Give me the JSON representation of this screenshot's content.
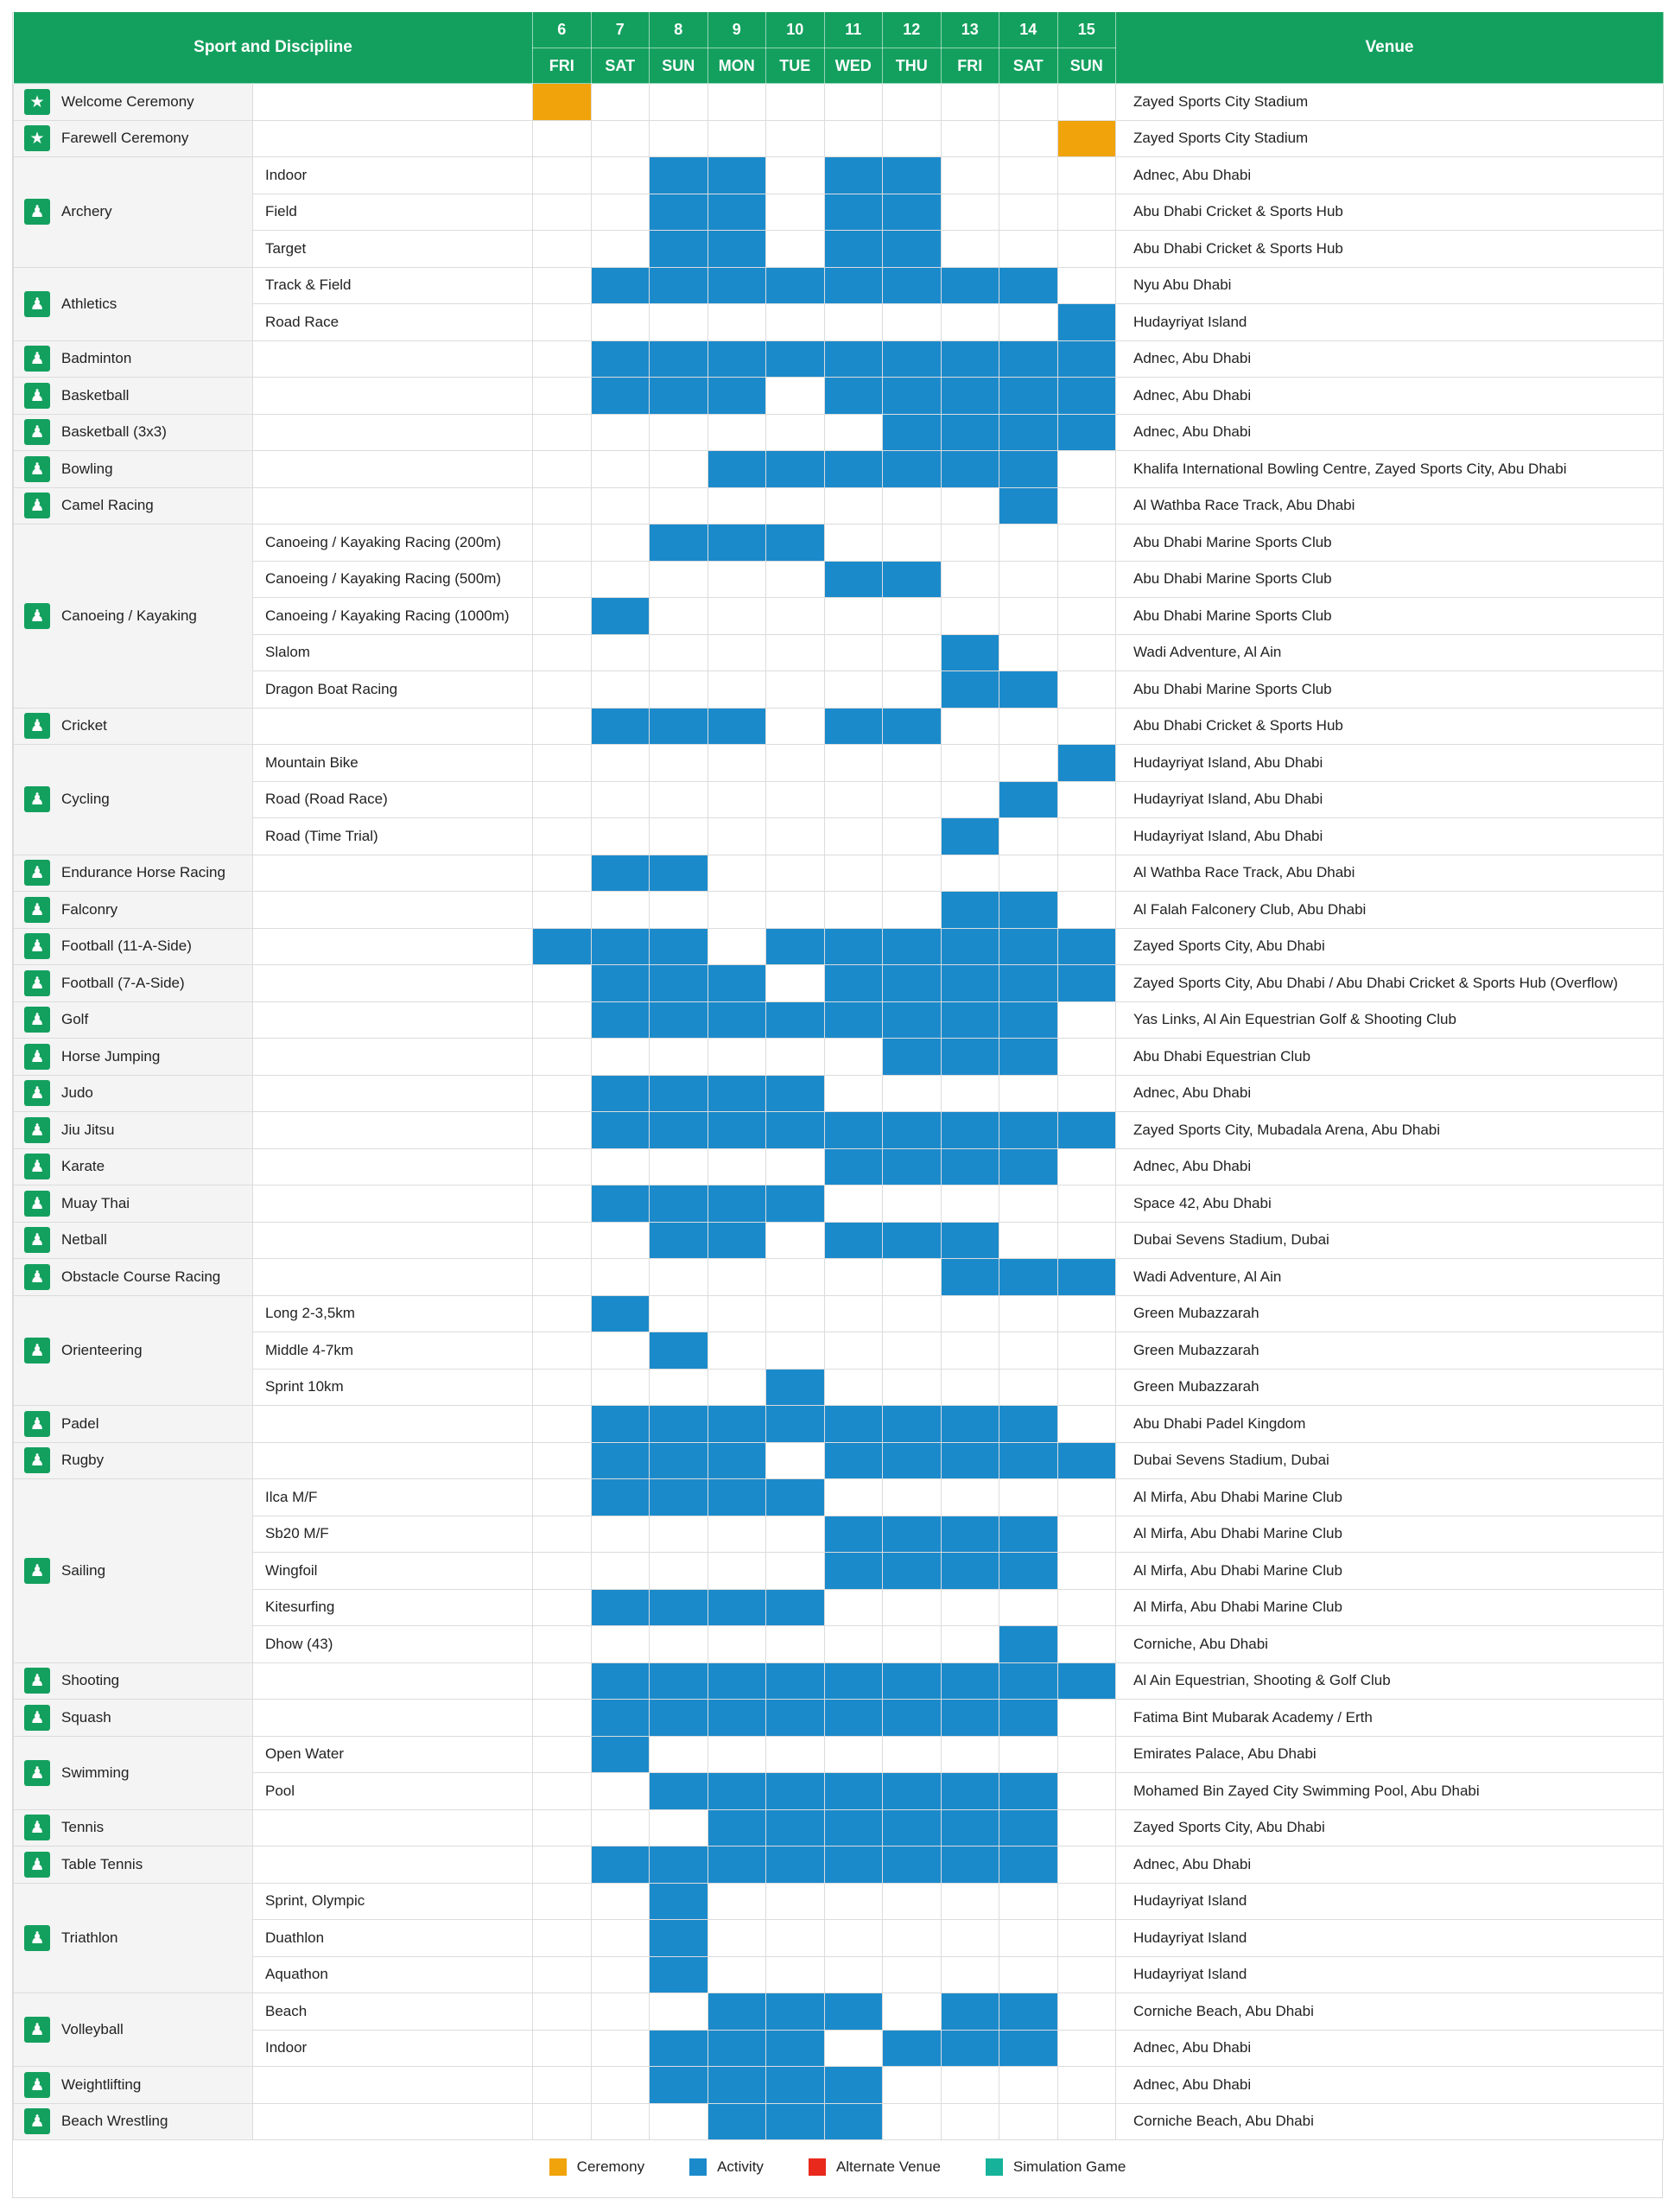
{
  "header": {
    "sport_label": "Sport and Discipline",
    "venue_label": "Venue",
    "dates": [
      "6",
      "7",
      "8",
      "9",
      "10",
      "11",
      "12",
      "13",
      "14",
      "15"
    ],
    "weekdays": [
      "FRI",
      "SAT",
      "SUN",
      "MON",
      "TUE",
      "WED",
      "THU",
      "FRI",
      "SAT",
      "SUN"
    ]
  },
  "colors": {
    "header_green": "#13a05e",
    "activity": "#1b8acb",
    "ceremony": "#f0a30a",
    "alternate_venue": "#e8291c",
    "simulation_game": "#16b39a"
  },
  "legend": [
    {
      "label": "Ceremony",
      "color": "#f0a30a"
    },
    {
      "label": "Activity",
      "color": "#1b8acb"
    },
    {
      "label": "Alternate Venue",
      "color": "#e8291c"
    },
    {
      "label": "Simulation Game",
      "color": "#16b39a"
    }
  ],
  "sports": [
    {
      "name": "Welcome Ceremony",
      "icon": "star-icon",
      "rows": [
        {
          "discipline": "",
          "days": "C---------",
          "venue": "Zayed Sports City Stadium"
        }
      ]
    },
    {
      "name": "Farewell Ceremony",
      "icon": "star-icon",
      "rows": [
        {
          "discipline": "",
          "days": "---------C",
          "venue": "Zayed Sports City Stadium"
        }
      ]
    },
    {
      "name": "Archery",
      "icon": "archery-icon",
      "rows": [
        {
          "discipline": "Indoor",
          "days": "--AA-AA---",
          "venue": "Adnec, Abu Dhabi"
        },
        {
          "discipline": "Field",
          "days": "--AA-AA---",
          "venue": "Abu Dhabi Cricket & Sports Hub"
        },
        {
          "discipline": "Target",
          "days": "--AA-AA---",
          "venue": "Abu Dhabi Cricket & Sports Hub"
        }
      ]
    },
    {
      "name": "Athletics",
      "icon": "running-icon",
      "rows": [
        {
          "discipline": "Track & Field",
          "days": "-AAAAAAAA-",
          "venue": "Nyu Abu Dhabi"
        },
        {
          "discipline": "Road Race",
          "days": "---------A",
          "venue": "Hudayriyat Island"
        }
      ]
    },
    {
      "name": "Badminton",
      "icon": "badminton-icon",
      "rows": [
        {
          "discipline": "",
          "days": "-AAAAAAAAA",
          "venue": "Adnec, Abu Dhabi"
        }
      ]
    },
    {
      "name": "Basketball",
      "icon": "basketball-icon",
      "rows": [
        {
          "discipline": "",
          "days": "-AAA-AAAAA",
          "venue": "Adnec, Abu Dhabi"
        }
      ]
    },
    {
      "name": "Basketball (3x3)",
      "icon": "basketball-icon",
      "rows": [
        {
          "discipline": "",
          "days": "------AAAA",
          "venue": "Adnec, Abu Dhabi"
        }
      ]
    },
    {
      "name": "Bowling",
      "icon": "bowling-icon",
      "rows": [
        {
          "discipline": "",
          "days": "---AAAAAA-",
          "venue": "Khalifa International Bowling Centre, Zayed Sports City, Abu Dhabi"
        }
      ]
    },
    {
      "name": "Camel Racing",
      "icon": "camel-icon",
      "rows": [
        {
          "discipline": "",
          "days": "--------A-",
          "venue": "Al Wathba Race Track, Abu Dhabi"
        }
      ]
    },
    {
      "name": "Canoeing / Kayaking",
      "icon": "canoe-icon",
      "rows": [
        {
          "discipline": "Canoeing / Kayaking Racing (200m)",
          "days": "--AAA-----",
          "venue": "Abu Dhabi Marine Sports Club"
        },
        {
          "discipline": "Canoeing / Kayaking  Racing (500m)",
          "days": "-----AA---",
          "venue": "Abu Dhabi Marine Sports Club"
        },
        {
          "discipline": "Canoeing / Kayaking  Racing (1000m)",
          "days": "-A--------",
          "venue": "Abu Dhabi Marine Sports Club"
        },
        {
          "discipline": "Slalom",
          "days": "-------A--",
          "venue": "Wadi Adventure, Al Ain"
        },
        {
          "discipline": "Dragon Boat Racing",
          "days": "-------AA-",
          "venue": "Abu Dhabi Marine Sports Club"
        }
      ]
    },
    {
      "name": "Cricket",
      "icon": "cricket-icon",
      "rows": [
        {
          "discipline": "",
          "days": "-AAA-AA---",
          "venue": "Abu Dhabi Cricket & Sports Hub"
        }
      ]
    },
    {
      "name": "Cycling",
      "icon": "bicycle-icon",
      "rows": [
        {
          "discipline": "Mountain Bike",
          "days": "---------A",
          "venue": "Hudayriyat Island, Abu Dhabi"
        },
        {
          "discipline": "Road (Road Race)",
          "days": "--------A-",
          "venue": "Hudayriyat Island, Abu Dhabi"
        },
        {
          "discipline": "Road (Time Trial)",
          "days": "-------A--",
          "venue": "Hudayriyat Island, Abu Dhabi"
        }
      ]
    },
    {
      "name": "Endurance Horse Racing",
      "icon": "horse-icon",
      "rows": [
        {
          "discipline": "",
          "days": "-AA-------",
          "venue": "Al Wathba Race Track, Abu Dhabi"
        }
      ]
    },
    {
      "name": "Falconry",
      "icon": "falcon-icon",
      "rows": [
        {
          "discipline": "",
          "days": "-------AA-",
          "venue": "Al Falah Falconery Club, Abu Dhabi"
        }
      ]
    },
    {
      "name": "Football (11-A-Side)",
      "icon": "football-icon",
      "rows": [
        {
          "discipline": "",
          "days": "AAA-AAAAAA",
          "venue": "Zayed Sports City, Abu Dhabi"
        }
      ]
    },
    {
      "name": "Football (7-A-Side)",
      "icon": "football-icon",
      "rows": [
        {
          "discipline": "",
          "days": "-AAA-AAAAA",
          "venue": "Zayed Sports City, Abu Dhabi / Abu Dhabi Cricket & Sports Hub (Overflow)"
        }
      ]
    },
    {
      "name": "Golf",
      "icon": "golf-icon",
      "rows": [
        {
          "discipline": "",
          "days": "-AAAAAAAA-",
          "venue": "Yas Links, Al Ain Equestrian Golf & Shooting Club"
        }
      ]
    },
    {
      "name": "Horse Jumping",
      "icon": "horse-icon",
      "rows": [
        {
          "discipline": "",
          "days": "------AAA-",
          "venue": "Abu Dhabi Equestrian Club"
        }
      ]
    },
    {
      "name": "Judo",
      "icon": "judo-icon",
      "rows": [
        {
          "discipline": "",
          "days": "-AAAA-----",
          "venue": "Adnec, Abu Dhabi"
        }
      ]
    },
    {
      "name": "Jiu Jitsu",
      "icon": "jiujitsu-icon",
      "rows": [
        {
          "discipline": "",
          "days": "-AAAAAAAAA",
          "venue": "Zayed Sports City, Mubadala Arena, Abu Dhabi"
        }
      ]
    },
    {
      "name": "Karate",
      "icon": "karate-icon",
      "rows": [
        {
          "discipline": "",
          "days": "-----AAAA-",
          "venue": "Adnec, Abu Dhabi"
        }
      ]
    },
    {
      "name": "Muay Thai",
      "icon": "muaythai-icon",
      "rows": [
        {
          "discipline": "",
          "days": "-AAAA-----",
          "venue": "Space 42, Abu Dhabi"
        }
      ]
    },
    {
      "name": "Netball",
      "icon": "netball-icon",
      "rows": [
        {
          "discipline": "",
          "days": "--AA-AAA--",
          "venue": "Dubai Sevens Stadium, Dubai"
        }
      ]
    },
    {
      "name": "Obstacle Course Racing",
      "icon": "obstacle-icon",
      "rows": [
        {
          "discipline": "",
          "days": "-------AAA",
          "venue": "Wadi Adventure, Al Ain"
        }
      ]
    },
    {
      "name": "Orienteering",
      "icon": "orienteering-icon",
      "rows": [
        {
          "discipline": "Long 2-3,5km",
          "days": "-A--------",
          "venue": "Green Mubazzarah"
        },
        {
          "discipline": "Middle 4-7km",
          "days": "--A-------",
          "venue": "Green Mubazzarah"
        },
        {
          "discipline": "Sprint 10km",
          "days": "----A-----",
          "venue": "Green Mubazzarah"
        }
      ]
    },
    {
      "name": "Padel",
      "icon": "padel-icon",
      "rows": [
        {
          "discipline": "",
          "days": "-AAAAAAAA-",
          "venue": "Abu Dhabi Padel Kingdom"
        }
      ]
    },
    {
      "name": "Rugby",
      "icon": "rugby-icon",
      "rows": [
        {
          "discipline": "",
          "days": "-AAA-AAAAA",
          "venue": "Dubai Sevens Stadium, Dubai"
        }
      ]
    },
    {
      "name": "Sailing",
      "icon": "sailing-icon",
      "rows": [
        {
          "discipline": "Ilca M/F",
          "days": "-AAAA-----",
          "venue": "Al Mirfa, Abu Dhabi Marine Club"
        },
        {
          "discipline": "Sb20 M/F",
          "days": "-----AAAA-",
          "venue": "Al Mirfa, Abu Dhabi Marine Club"
        },
        {
          "discipline": "Wingfoil",
          "days": "-----AAAA-",
          "venue": "Al Mirfa, Abu Dhabi Marine Club"
        },
        {
          "discipline": "Kitesurfing",
          "days": "-AAAA-----",
          "venue": "Al Mirfa, Abu Dhabi Marine Club"
        },
        {
          "discipline": "Dhow (43)",
          "days": "--------A-",
          "venue": "Corniche, Abu Dhabi"
        }
      ]
    },
    {
      "name": "Shooting",
      "icon": "shooting-icon",
      "rows": [
        {
          "discipline": "",
          "days": "-AAAAAAAAA",
          "venue": "Al Ain Equestrian, Shooting & Golf Club"
        }
      ]
    },
    {
      "name": "Squash",
      "icon": "squash-icon",
      "rows": [
        {
          "discipline": "",
          "days": "-AAAAAAAA-",
          "venue": "Fatima Bint Mubarak Academy / Erth"
        }
      ]
    },
    {
      "name": "Swimming",
      "icon": "swimming-icon",
      "rows": [
        {
          "discipline": "Open Water",
          "days": "-A--------",
          "venue": "Emirates Palace, Abu Dhabi"
        },
        {
          "discipline": "Pool",
          "days": "--AAAAAAA-",
          "venue": "Mohamed Bin Zayed City Swimming Pool, Abu Dhabi"
        }
      ]
    },
    {
      "name": "Tennis",
      "icon": "tennis-icon",
      "rows": [
        {
          "discipline": "",
          "days": "---AAAAAA-",
          "venue": "Zayed Sports City, Abu Dhabi"
        }
      ]
    },
    {
      "name": "Table Tennis",
      "icon": "table-tennis-icon",
      "rows": [
        {
          "discipline": "",
          "days": "-AAAAAAAA-",
          "venue": "Adnec, Abu Dhabi"
        }
      ]
    },
    {
      "name": "Triathlon",
      "icon": "triathlon-icon",
      "rows": [
        {
          "discipline": "Sprint, Olympic",
          "days": "--A-------",
          "venue": "Hudayriyat Island"
        },
        {
          "discipline": "Duathlon",
          "days": "--A-------",
          "venue": "Hudayriyat Island"
        },
        {
          "discipline": "Aquathon",
          "days": "--A-------",
          "venue": "Hudayriyat Island"
        }
      ]
    },
    {
      "name": "Volleyball",
      "icon": "volleyball-icon",
      "rows": [
        {
          "discipline": "Beach",
          "days": "---AAA-AA-",
          "venue": "Corniche Beach, Abu Dhabi"
        },
        {
          "discipline": "Indoor",
          "days": "--AAA-AAA-",
          "venue": "Adnec, Abu Dhabi"
        }
      ]
    },
    {
      "name": "Weightlifting",
      "icon": "weightlifting-icon",
      "rows": [
        {
          "discipline": "",
          "days": "--AAAA----",
          "venue": "Adnec, Abu Dhabi"
        }
      ]
    },
    {
      "name": "Beach Wrestling",
      "icon": "wrestling-icon",
      "rows": [
        {
          "discipline": "",
          "days": "---AAA----",
          "venue": "Corniche Beach, Abu Dhabi"
        }
      ]
    }
  ]
}
